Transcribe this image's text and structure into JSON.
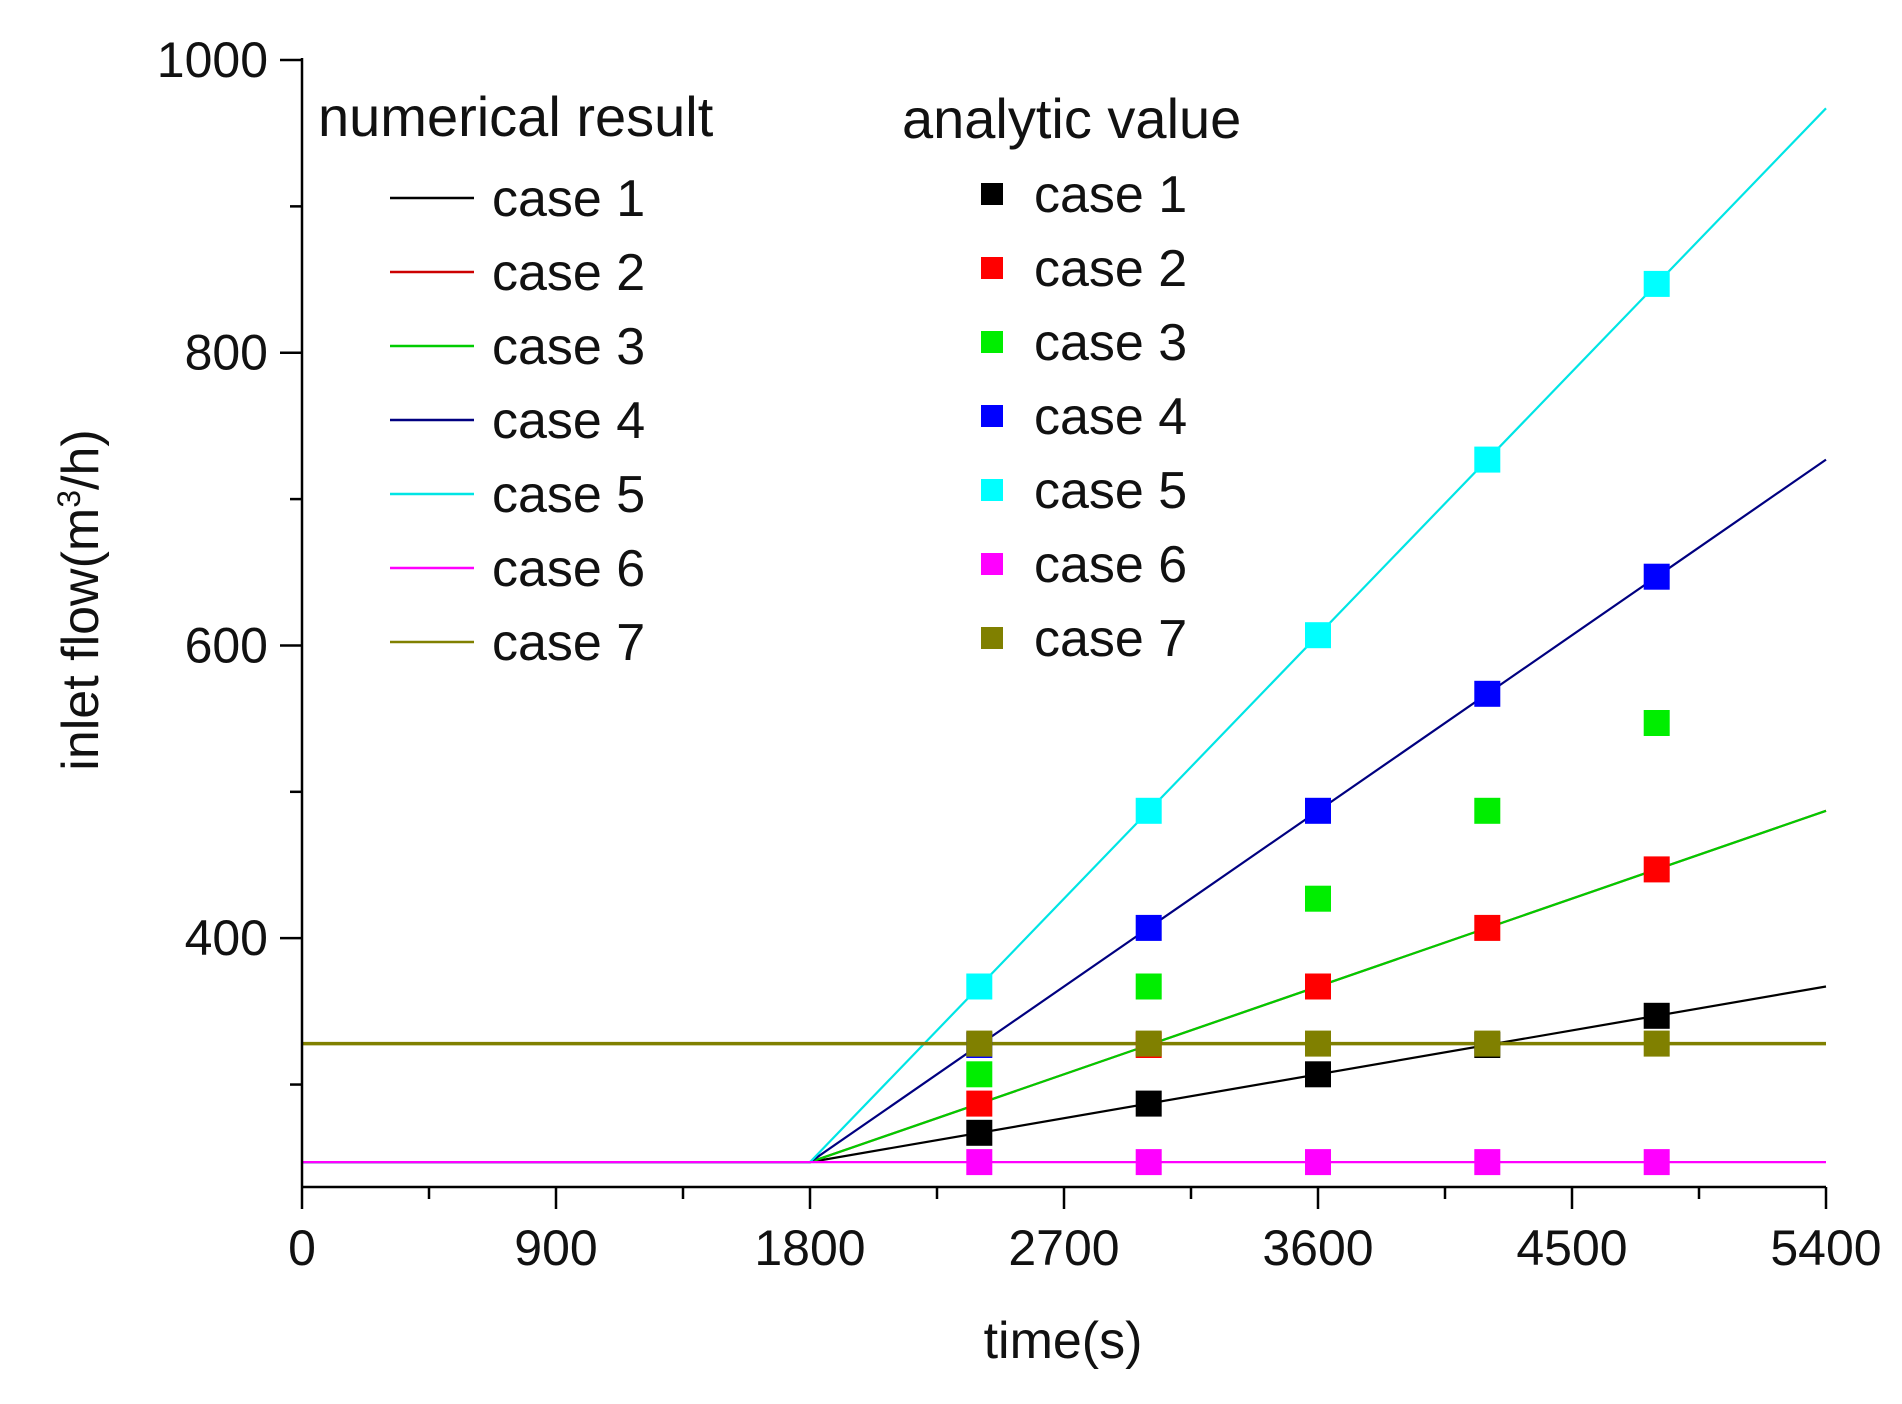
{
  "chart_data": {
    "type": "line",
    "title": "",
    "xlabel": "time(s)",
    "ylabel_main": "inlet flow(m",
    "ylabel_sup": "3",
    "ylabel_tail": "/h)",
    "xlim": [
      0,
      5400
    ],
    "ylim": [
      230,
      1000
    ],
    "xticks": [
      0,
      900,
      1800,
      2700,
      3600,
      4500,
      5400
    ],
    "xtick_labels": [
      "0",
      "900",
      "1800",
      "2700",
      "3600",
      "4500",
      "5400"
    ],
    "yticks": [
      400,
      600,
      800,
      1000
    ],
    "ytick_labels": [
      "400",
      "600",
      "800",
      "1000"
    ],
    "grid": false,
    "legend": {
      "lines_title": "numerical result",
      "markers_title": "analytic value",
      "placement": "top-left"
    },
    "line_series": [
      {
        "name": "case 1",
        "color": "#000000",
        "x": [
          0,
          1800,
          5400
        ],
        "y": [
          247,
          247,
          367
        ]
      },
      {
        "name": "case 2",
        "color": "#cc0000",
        "x": [
          0,
          1800,
          5400
        ],
        "y": [
          247,
          247,
          487
        ]
      },
      {
        "name": "case 3",
        "color": "#00cc00",
        "x": [
          0,
          1800,
          5400
        ],
        "y": [
          247,
          247,
          487
        ]
      },
      {
        "name": "case 4",
        "color": "#000080",
        "x": [
          0,
          1800,
          5400
        ],
        "y": [
          247,
          247,
          727
        ]
      },
      {
        "name": "case 5",
        "color": "#00e5e5",
        "x": [
          0,
          1800,
          5400
        ],
        "y": [
          247,
          247,
          967
        ]
      },
      {
        "name": "case 6",
        "color": "#ff00ff",
        "x": [
          0,
          5400
        ],
        "y": [
          247,
          247
        ]
      },
      {
        "name": "case 7",
        "color": "#808000",
        "x": [
          0,
          5400
        ],
        "y": [
          328,
          328
        ]
      }
    ],
    "marker_series": [
      {
        "name": "case 1",
        "color": "#000000",
        "x": [
          2400,
          3000,
          3600,
          4200,
          4800
        ],
        "y": [
          267,
          287,
          307,
          327,
          347
        ]
      },
      {
        "name": "case 2",
        "color": "#ff0000",
        "x": [
          2400,
          3000,
          3600,
          4200,
          4800
        ],
        "y": [
          287,
          327,
          367,
          407,
          447
        ]
      },
      {
        "name": "case 3",
        "color": "#00ee00",
        "x": [
          2400,
          3000,
          3600,
          4200,
          4800
        ],
        "y": [
          307,
          367,
          427,
          487,
          547
        ]
      },
      {
        "name": "case 4",
        "color": "#0000ff",
        "x": [
          2400,
          3000,
          3600,
          4200,
          4800
        ],
        "y": [
          327,
          407,
          487,
          567,
          647
        ]
      },
      {
        "name": "case 5",
        "color": "#00ffff",
        "x": [
          2400,
          3000,
          3600,
          4200,
          4800
        ],
        "y": [
          367,
          487,
          607,
          727,
          847
        ]
      },
      {
        "name": "case 6",
        "color": "#ff00ff",
        "x": [
          2400,
          3000,
          3600,
          4200,
          4800
        ],
        "y": [
          247,
          247,
          247,
          247,
          247
        ]
      },
      {
        "name": "case 7",
        "color": "#808000",
        "x": [
          2400,
          3000,
          3600,
          4200,
          4800
        ],
        "y": [
          328,
          328,
          328,
          328,
          328
        ]
      }
    ]
  }
}
